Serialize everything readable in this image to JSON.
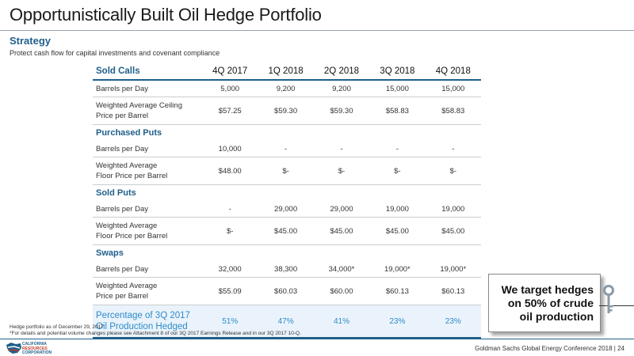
{
  "title": "Opportunistically Built Oil Hedge Portfolio",
  "strategy": {
    "heading": "Strategy",
    "description": "Protect cash flow for capital investments and covenant compliance"
  },
  "table": {
    "first_category": "Sold Calls",
    "quarters": [
      "4Q 2017",
      "1Q 2018",
      "2Q 2018",
      "3Q 2018",
      "4Q 2018"
    ],
    "sold_calls": {
      "r1_label": "Barrels per Day",
      "r1_values": [
        "5,000",
        "9,200",
        "9,200",
        "15,000",
        "15,000"
      ],
      "r2_label_a": "Weighted Average Ceiling",
      "r2_label_b": "Price per Barrel",
      "r2_values": [
        "$57.25",
        "$59.30",
        "$59.30",
        "$58.83",
        "$58.83"
      ]
    },
    "purchased_puts": {
      "heading": "Purchased Puts",
      "r1_label": "Barrels per Day",
      "r1_values": [
        "10,000",
        "-",
        "-",
        "-",
        "-"
      ],
      "r2_label_a": "Weighted Average",
      "r2_label_b": "Floor Price per Barrel",
      "r2_values": [
        "$48.00",
        "$-",
        "$-",
        "$-",
        "$-"
      ]
    },
    "sold_puts": {
      "heading": "Sold Puts",
      "r1_label": "Barrels per Day",
      "r1_values": [
        "-",
        "29,000",
        "29,000",
        "19,000",
        "19,000"
      ],
      "r2_label_a": "Weighted Average",
      "r2_label_b": "Floor Price per Barrel",
      "r2_values": [
        "$-",
        "$45.00",
        "$45.00",
        "$45.00",
        "$45.00"
      ]
    },
    "swaps": {
      "heading": "Swaps",
      "r1_label": "Barrels per Day",
      "r1_values": [
        "32,000",
        "38,300",
        "34,000*",
        "19,000*",
        "19,000*"
      ],
      "r2_label_a": "Weighted Average",
      "r2_label_b": "Price per Barrel",
      "r2_values": [
        "$55.09",
        "$60.03",
        "$60.00",
        "$60.13",
        "$60.13"
      ]
    },
    "percentage": {
      "label_a": "Percentage of 3Q 2017",
      "label_b": "Oil Production Hedged",
      "values": [
        "51%",
        "47%",
        "41%",
        "23%",
        "23%"
      ]
    }
  },
  "callout": {
    "line1": "We target hedges",
    "line2": "on 50% of crude",
    "line3": "oil production"
  },
  "notes": {
    "line1": "Hedge portfolio as of December 29, 2017",
    "line2": "*For details and potential volume changes please see Attachment 8 of our 3Q 2017 Earnings Release and in our 3Q 2017 10-Q."
  },
  "logo": {
    "line1": "CALIFORNIA",
    "line2": "RESOURCES",
    "line3": "CORPORATION"
  },
  "footer": {
    "event": "Goldman Sachs Global Energy Conference 2018",
    "separator": "|",
    "page_number": "24"
  },
  "colors": {
    "accent": "#1f5f8b",
    "highlight": "#2e8bc9",
    "logo_red": "#c0392b"
  },
  "icons": [
    "key-icon",
    "company-logo"
  ]
}
